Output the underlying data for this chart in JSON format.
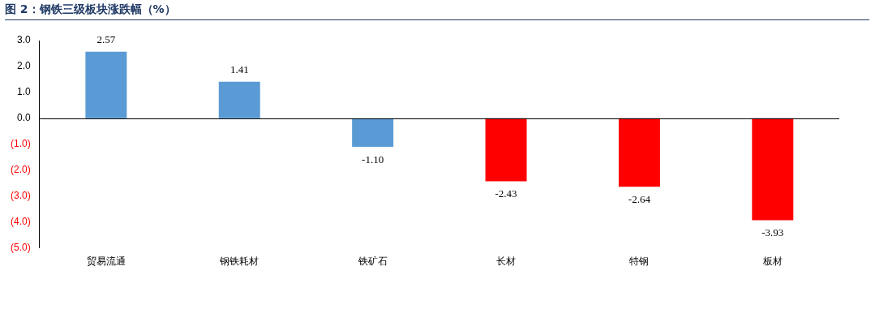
{
  "chart_data": {
    "type": "bar",
    "title": "图 2：钢铁三级板块涨跌幅（%）",
    "categories": [
      "贸易流通",
      "钢铁耗材",
      "铁矿石",
      "长材",
      "特钢",
      "板材"
    ],
    "values": [
      2.57,
      1.41,
      -1.1,
      -2.43,
      -2.64,
      -3.93
    ],
    "value_labels": [
      "2.57",
      "1.41",
      "-1.10",
      "-2.43",
      "-2.64",
      "-3.93"
    ],
    "colors": [
      "#5b9bd5",
      "#5b9bd5",
      "#5b9bd5",
      "#ff0000",
      "#ff0000",
      "#ff0000"
    ],
    "ylim": [
      -5,
      3
    ],
    "yticks": [
      {
        "value": 3,
        "label": "3.0"
      },
      {
        "value": 2,
        "label": "2.0"
      },
      {
        "value": 1,
        "label": "1.0"
      },
      {
        "value": 0,
        "label": "0.0"
      },
      {
        "value": -1,
        "label": "(1.0)"
      },
      {
        "value": -2,
        "label": "(2.0)"
      },
      {
        "value": -3,
        "label": "(3.0)"
      },
      {
        "value": -4,
        "label": "(4.0)"
      },
      {
        "value": -5,
        "label": "(5.0)"
      }
    ],
    "ref_lines": [
      {
        "axis": "y",
        "value": 0,
        "color": "#000000",
        "line_style": "solid"
      }
    ],
    "grid": false,
    "legend": false
  }
}
